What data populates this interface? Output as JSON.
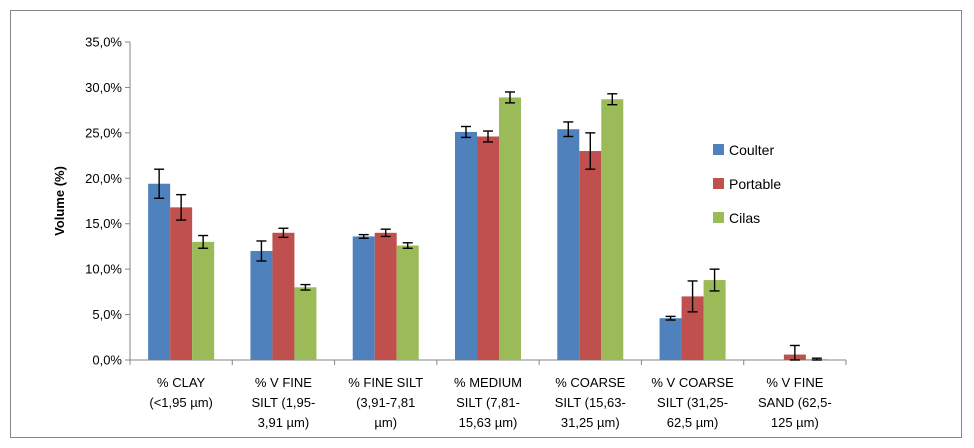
{
  "chart_data": {
    "type": "bar",
    "title": "",
    "xlabel": "",
    "ylabel": "Volume (%)",
    "ylim": [
      0,
      35
    ],
    "ytick_labels": [
      "0,0%",
      "5,0%",
      "10,0%",
      "15,0%",
      "20,0%",
      "25,0%",
      "30,0%",
      "35,0%"
    ],
    "grid": false,
    "legend_position": "right",
    "categories": [
      [
        "% CLAY",
        "(<1,95 µm)"
      ],
      [
        "% V FINE",
        "SILT (1,95-",
        "3,91 µm)"
      ],
      [
        "% FINE SILT",
        "(3,91-7,81",
        "µm)"
      ],
      [
        "% MEDIUM",
        "SILT (7,81-",
        "15,63 µm)"
      ],
      [
        "% COARSE",
        "SILT (15,63-",
        "31,25 µm)"
      ],
      [
        "% V COARSE",
        "SILT (31,25-",
        "62,5 µm)"
      ],
      [
        "% V FINE",
        "SAND (62,5-",
        "125 µm)"
      ]
    ],
    "series": [
      {
        "name": "Coulter",
        "color": "#4F81BD",
        "values": [
          19.4,
          12.0,
          13.6,
          25.1,
          25.4,
          4.6,
          0.0
        ],
        "errors": [
          1.6,
          1.1,
          0.2,
          0.6,
          0.8,
          0.2,
          0.0
        ]
      },
      {
        "name": "Portable",
        "color": "#C0504D",
        "values": [
          16.8,
          14.0,
          14.0,
          24.6,
          23.0,
          7.0,
          0.6
        ],
        "errors": [
          1.4,
          0.5,
          0.4,
          0.6,
          2.0,
          1.7,
          1.0
        ]
      },
      {
        "name": "Cilas",
        "color": "#9BBB59",
        "values": [
          13.0,
          8.0,
          12.6,
          28.9,
          28.7,
          8.8,
          0.1
        ],
        "errors": [
          0.7,
          0.3,
          0.3,
          0.6,
          0.6,
          1.2,
          0.1
        ]
      }
    ]
  }
}
